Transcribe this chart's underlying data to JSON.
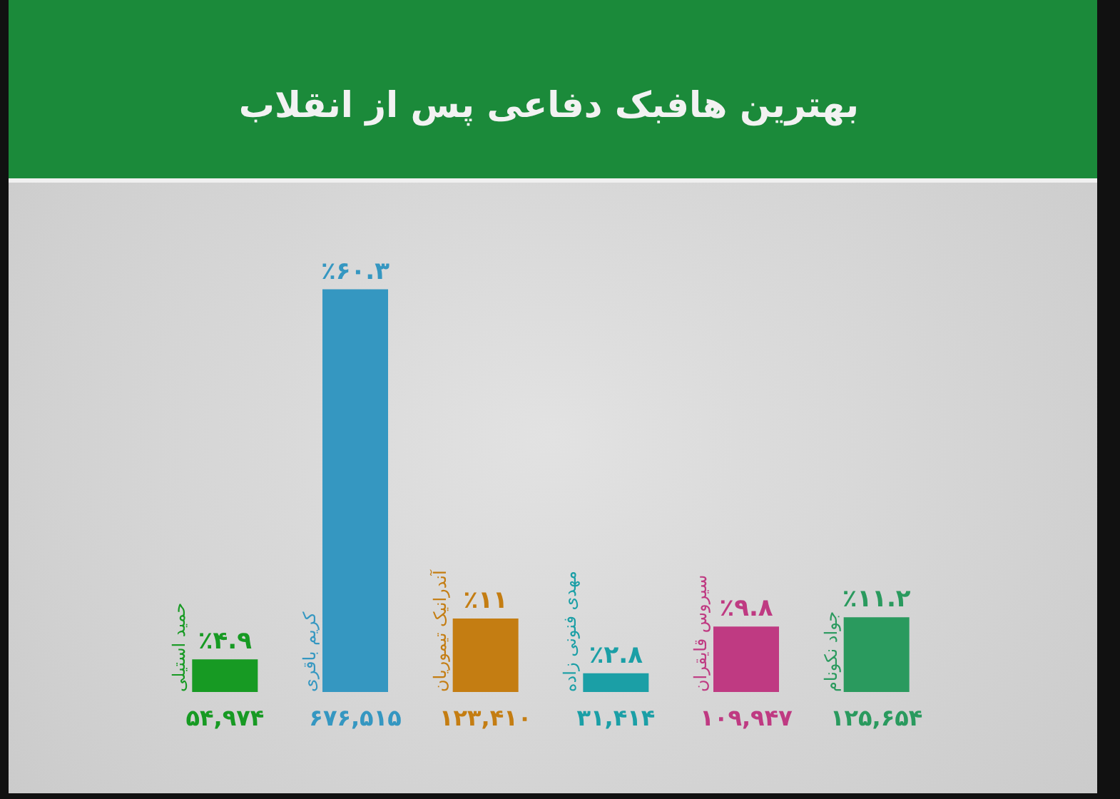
{
  "chart_data": {
    "type": "bar",
    "title": "بهترین هافبک دفاعی پس از انقلاب",
    "categories": [
      "حمید استیلی",
      "کریم باقری",
      "آندرانیک تیموریان",
      "مهدی فنونی زاده",
      "سیروس قایقران",
      "جواد نکونام"
    ],
    "values": [
      4.9,
      60.3,
      11,
      2.8,
      9.8,
      11.2
    ],
    "colors": [
      "#179a23",
      "#3597c1",
      "#c47d12",
      "#1b9fa6",
      "#bf3a82",
      "#2a9a5e"
    ],
    "value_labels": [
      "٪۴.۹",
      "٪۶۰.۳",
      "٪۱۱",
      "٪۲.۸",
      "٪۹.۸",
      "٪۱۱.۲"
    ],
    "annotations": [
      "۵۴,۹۷۴",
      "۶۷۶,۵۱۵",
      "۱۲۳,۴۱۰",
      "۳۱,۴۱۴",
      "۱۰۹,۹۴۷",
      "۱۲۵,۶۵۴"
    ]
  }
}
